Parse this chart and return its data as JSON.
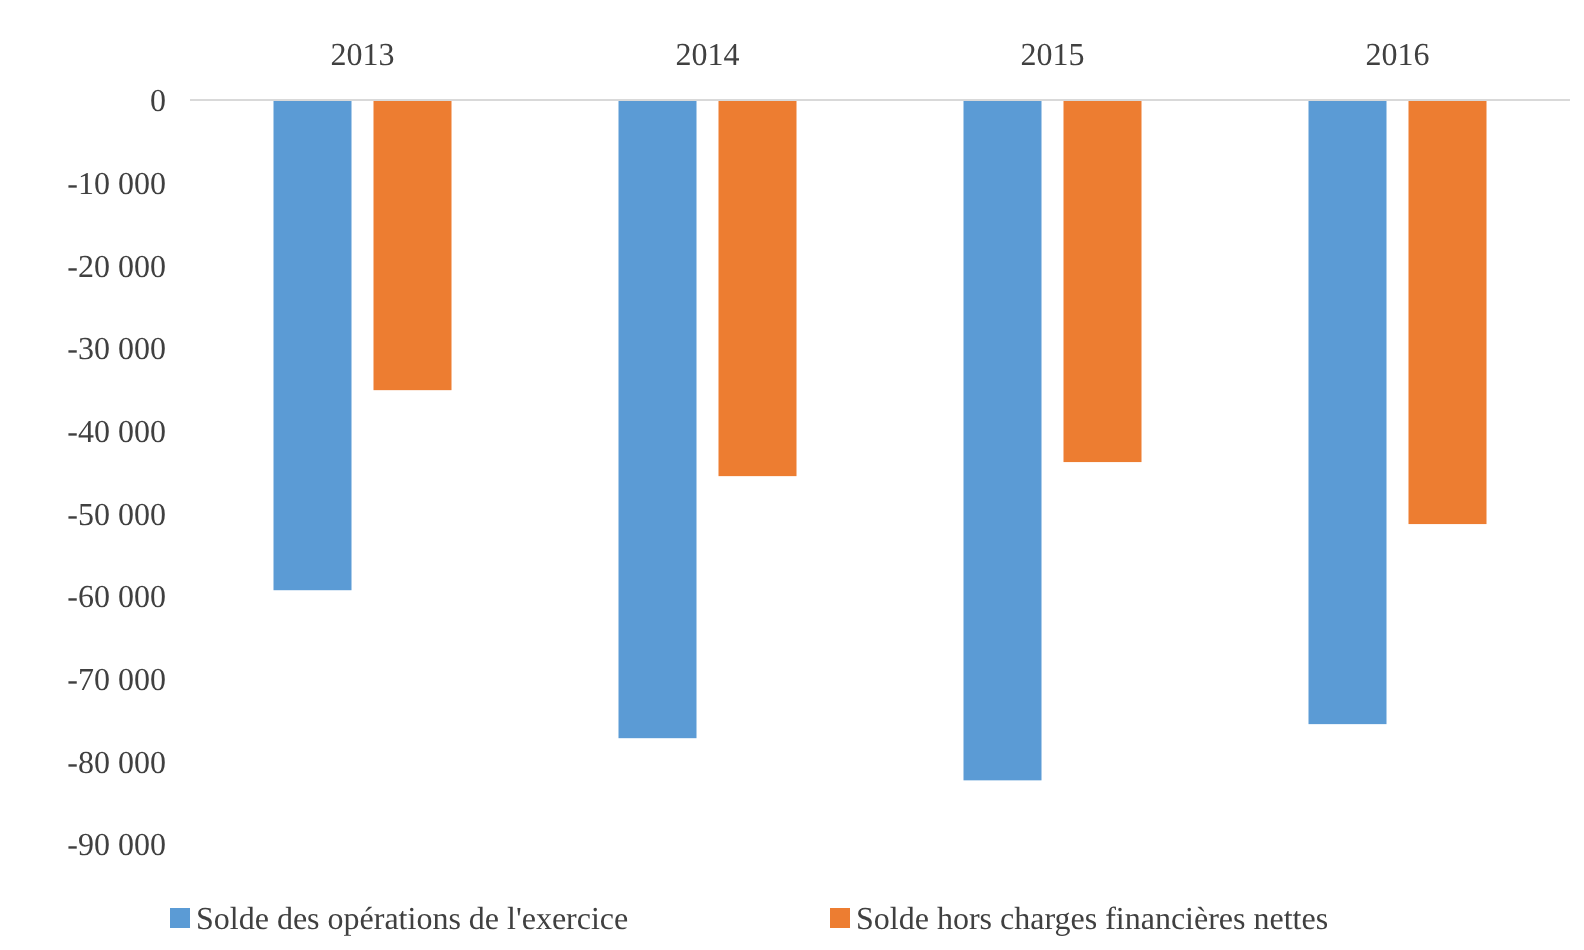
{
  "chart_data": {
    "type": "bar",
    "categories": [
      "2013",
      "2014",
      "2015",
      "2016"
    ],
    "series": [
      {
        "name": "Solde des opérations de l'exercice",
        "color": "#5b9bd5",
        "values": [
          -59300,
          -77200,
          -82300,
          -75500
        ]
      },
      {
        "name": "Solde hors charges financières nettes",
        "color": "#ed7d31",
        "values": [
          -35100,
          -45500,
          -43800,
          -51300
        ]
      }
    ],
    "ylim": [
      -90000,
      0
    ],
    "yticks": [
      {
        "value": 0,
        "label": "0"
      },
      {
        "value": -10000,
        "label": "-10 000"
      },
      {
        "value": -20000,
        "label": "-20 000"
      },
      {
        "value": -30000,
        "label": "-30 000"
      },
      {
        "value": -40000,
        "label": "-40 000"
      },
      {
        "value": -50000,
        "label": "-50 000"
      },
      {
        "value": -60000,
        "label": "-60 000"
      },
      {
        "value": -70000,
        "label": "-70 000"
      },
      {
        "value": -80000,
        "label": "-80 000"
      },
      {
        "value": -90000,
        "label": "-90 000"
      }
    ],
    "grid": false,
    "legend": "bottom"
  }
}
